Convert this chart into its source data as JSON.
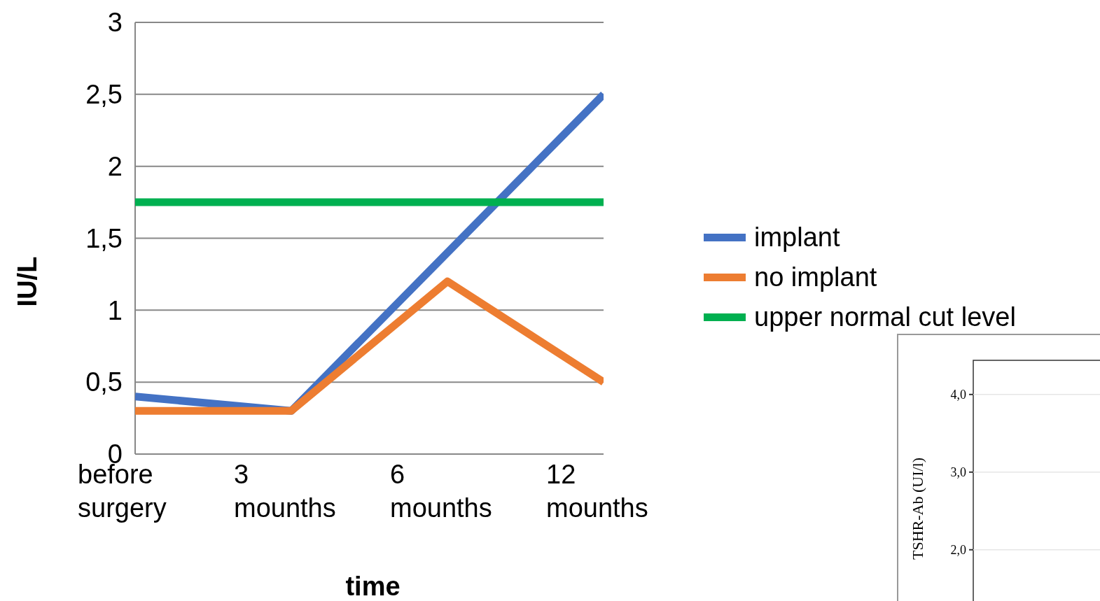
{
  "chart_data": [
    {
      "type": "line",
      "xlabel": "time",
      "ylabel": "IU/L",
      "categories": [
        "before surgery",
        "3 mounths",
        "6 mounths",
        "12 mounths"
      ],
      "series": [
        {
          "name": "implant",
          "color": "#4472c4",
          "values": [
            0.4,
            0.3,
            1.4,
            2.5
          ]
        },
        {
          "name": "no implant",
          "color": "#ed7d31",
          "values": [
            0.3,
            0.3,
            1.2,
            0.5
          ]
        },
        {
          "name": "upper normal cut level",
          "color": "#00b050",
          "values": [
            1.75,
            1.75,
            1.75,
            1.75
          ]
        }
      ],
      "ylim": [
        0,
        3
      ],
      "yticks": [
        0,
        {
          "value": 0.5,
          "label": "0,5"
        },
        1,
        {
          "value": 1.5,
          "label": "1,5"
        },
        2,
        {
          "value": 2.5,
          "label": "2,5"
        },
        3
      ],
      "grid": "y",
      "legend": "right",
      "marker": "none",
      "line_style": "solid"
    },
    {
      "type": "line",
      "ylabel": "TSHR-Ab (UI/l)",
      "categories": [
        null
      ],
      "ylim": [
        1.34,
        4.44
      ],
      "yticks": [
        {
          "value": 2,
          "label": "2,0"
        },
        {
          "value": 3,
          "label": "3,0"
        },
        {
          "value": 4,
          "label": "4,0"
        }
      ],
      "grid": "y",
      "tick_labels": "y"
    }
  ]
}
